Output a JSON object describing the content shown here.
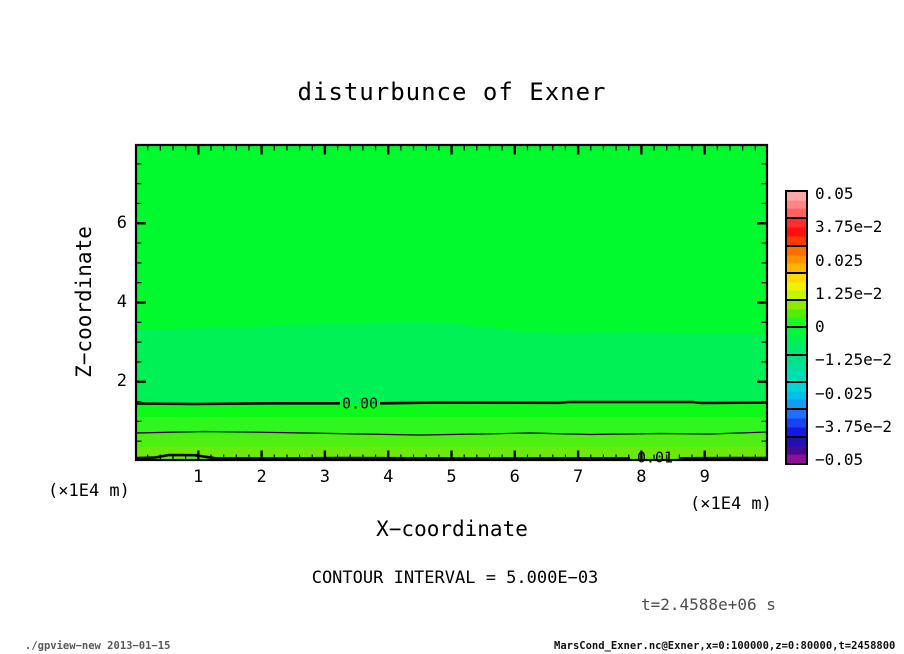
{
  "title": "disturbunce of Exner",
  "plot": {
    "x_axis": {
      "label": "X−coordinate",
      "unit": "(×1E4 m)",
      "ticks": [
        "1",
        "2",
        "3",
        "4",
        "5",
        "6",
        "7",
        "8",
        "9"
      ]
    },
    "y_axis": {
      "label": "Z−coordinate",
      "unit": "(×1E4 m)",
      "ticks": [
        "2",
        "4",
        "6"
      ]
    },
    "contours": {
      "zero_label": "0.00",
      "one_label": "0.01",
      "interval_text": "CONTOUR INTERVAL = 5.000E−03"
    },
    "band_colors": {
      "top_region": "#00fa2e",
      "upper_band": "#00f155",
      "below_zero_1": "#0dfa18",
      "below_zero_2": "#2ff61c",
      "below_half_1": "#4fef12",
      "below_half_2": "#6ce90c"
    }
  },
  "colorbar": {
    "labels": [
      "0.05",
      "3.75e−2",
      "0.025",
      "1.25e−2",
      "0",
      "−1.25e−2",
      "−0.025",
      "−3.75e−2",
      "−0.05"
    ],
    "segments": [
      [
        "#ffa8a8",
        "#ff8585",
        "#ff6060"
      ],
      [
        "#ff2e2e",
        "#ff0f0f",
        "#fb3a00"
      ],
      [
        "#ff6f00",
        "#ff9000",
        "#ffb400"
      ],
      [
        "#ffd800",
        "#eef200",
        "#c4f600"
      ],
      [
        "#8deb00",
        "#52ef05",
        "#1df81f"
      ],
      [
        "#00f83c",
        "#00f155",
        "#00ea6b"
      ],
      [
        "#00e287",
        "#00e0a0",
        "#00ddb8"
      ],
      [
        "#00d8d8",
        "#00bfe8",
        "#0f9ff2"
      ],
      [
        "#1f6fff",
        "#1a41f2",
        "#1518dd"
      ],
      [
        "#2310b2",
        "#470a94",
        "#8c0f94"
      ]
    ]
  },
  "time_label": "t=2.4588e+06 s",
  "footer": {
    "left": "./gpview−new  2013−01−15",
    "right": "MarsCond_Exner.nc@Exner,x=0:100000,z=0:80000,t=2458800"
  },
  "chart_data": {
    "type": "heatmap",
    "subtype": "filled-contour",
    "title": "disturbunce of Exner",
    "xlabel": "X-coordinate",
    "x_unit": "x1E4 m",
    "xlim": [
      0,
      10
    ],
    "x_ticks": [
      1,
      2,
      3,
      4,
      5,
      6,
      7,
      8,
      9
    ],
    "ylabel": "Z-coordinate",
    "y_unit": "x1E4 m",
    "ylim": [
      0,
      8
    ],
    "y_ticks": [
      2,
      4,
      6
    ],
    "contour_interval": 0.005,
    "contours": [
      {
        "value": 0.0,
        "z_approx": 1.45,
        "labeled": true,
        "thick": true
      },
      {
        "value": 0.005,
        "z_approx": 0.68,
        "labeled": false,
        "thick": false
      },
      {
        "value": 0.01,
        "z_approx": 0.08,
        "labeled": true,
        "thick": true
      }
    ],
    "colorbar_ticks": [
      0.05,
      0.0375,
      0.025,
      0.0125,
      0,
      -0.0125,
      -0.025,
      -0.0375,
      -0.05
    ],
    "legend_position": "right",
    "grid": false,
    "field_description": "Field near zero (slightly negative) over most of domain above z≈1.45e4 m; values increase toward surface reaching ≈0.01 at z≈0; color-cell boundary undulates near z≈3.3e4 m.",
    "time": "t=2.4588e+06 s"
  }
}
